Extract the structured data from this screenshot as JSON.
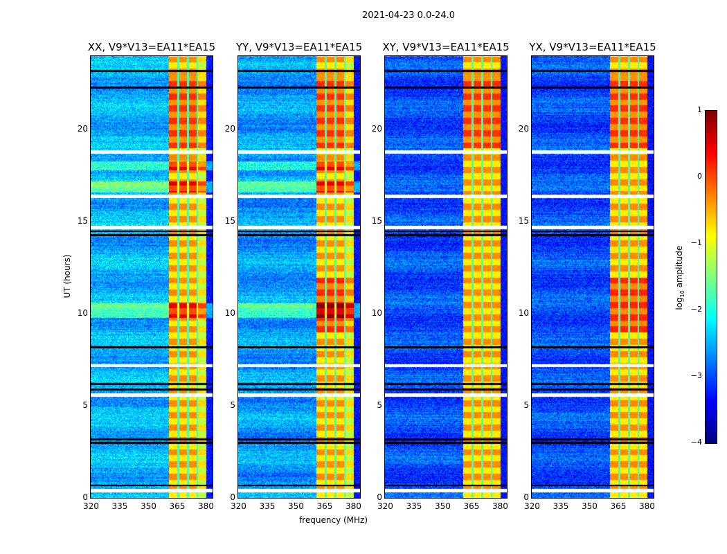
{
  "chart_data": {
    "type": "heatmap",
    "title": "2021-04-23 0.0-24.0",
    "xlabel": "frequency (MHz)",
    "ylabel": "UT (hours)",
    "xlim": [
      320,
      383.6
    ],
    "ylim": [
      0,
      24
    ],
    "xticks": [
      320,
      335,
      350,
      365,
      380
    ],
    "yticks": [
      0,
      5,
      10,
      15,
      20
    ],
    "panels": [
      {
        "title": "XX, V9*V13=EA11*EA15",
        "base_level": -2.5
      },
      {
        "title": "YY, V9*V13=EA11*EA15",
        "base_level": -2.6
      },
      {
        "title": "XY, V9*V13=EA11*EA15",
        "base_level": -3.0
      },
      {
        "title": "YX, V9*V13=EA11*EA15",
        "base_level": -3.0
      }
    ],
    "features": {
      "rfi_band_mhz": [
        360.5,
        380
      ],
      "rfi_band_level": -0.6,
      "rfi_band_dividers_mhz": [
        365.5,
        370.5,
        375.5
      ],
      "flagged_hours_white": [
        0.4,
        5.6,
        7.2,
        14.7,
        16.4,
        18.8
      ],
      "gap_hours_black": [
        0.7,
        3.0,
        3.2,
        5.9,
        6.2,
        8.2,
        14.3,
        14.5,
        22.3,
        23.2
      ]
    },
    "colorbar": {
      "label": "log",
      "label_sub": "10",
      "label_rest": " amplitude",
      "range": [
        -4,
        1
      ],
      "ticks": [
        "1",
        "0",
        "−1",
        "−2",
        "−3",
        "−4"
      ],
      "colormap": "jet"
    }
  }
}
